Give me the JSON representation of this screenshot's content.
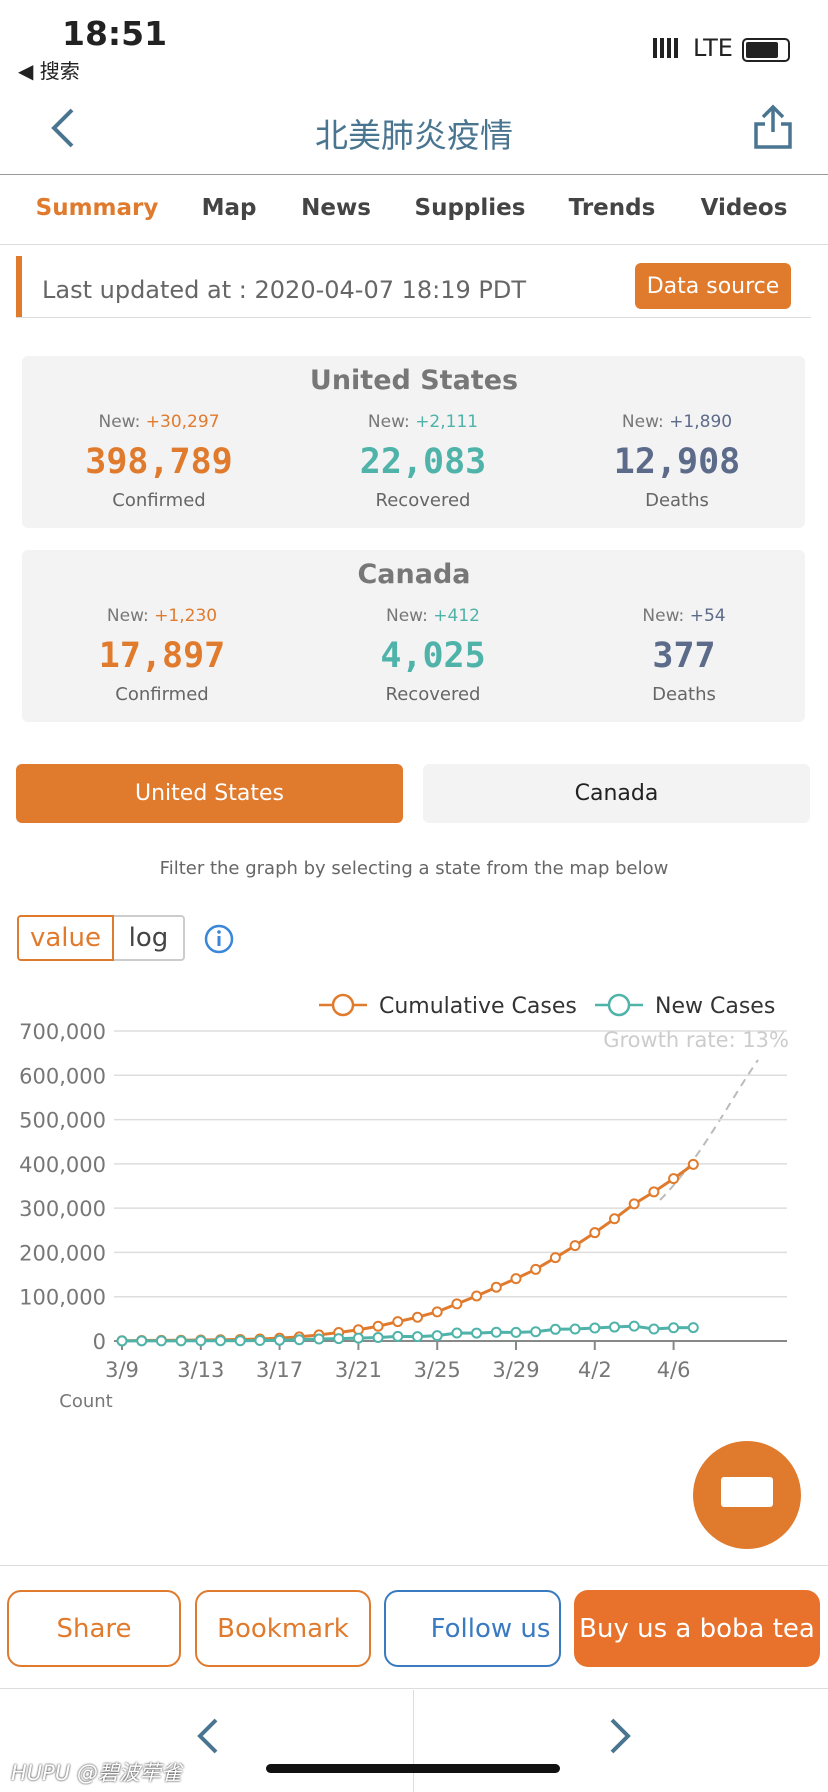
{
  "status": {
    "time": "18:51",
    "back": "◀ 搜索",
    "network": "LTE"
  },
  "nav": {
    "title": "北美肺炎疫情"
  },
  "tabs": [
    "Summary",
    "Map",
    "News",
    "Supplies",
    "Trends",
    "Videos"
  ],
  "updated": {
    "text": "Last updated at : 2020-04-07 18:19 PDT",
    "button": "Data source"
  },
  "cards": [
    {
      "title": "United States",
      "stats": [
        {
          "new_label": "New:",
          "new": "+30,297",
          "value": "398,789",
          "label": "Confirmed"
        },
        {
          "new_label": "New:",
          "new": "+2,111",
          "value": "22,083",
          "label": "Recovered"
        },
        {
          "new_label": "New:",
          "new": "+1,890",
          "value": "12,908",
          "label": "Deaths"
        }
      ]
    },
    {
      "title": "Canada",
      "stats": [
        {
          "new_label": "New:",
          "new": "+1,230",
          "value": "17,897",
          "label": "Confirmed"
        },
        {
          "new_label": "New:",
          "new": "+412",
          "value": "4,025",
          "label": "Recovered"
        },
        {
          "new_label": "New:",
          "new": "+54",
          "value": "377",
          "label": "Deaths"
        }
      ]
    }
  ],
  "toggle": [
    "United States",
    "Canada"
  ],
  "filter_text": "Filter the graph by selecting a state from the map below",
  "scale_buttons": [
    "value",
    "log"
  ],
  "chart_data": {
    "type": "line",
    "annotation": "Growth rate: 13%",
    "ylabel": "Count",
    "categories": [
      "3/9",
      null,
      null,
      null,
      "3/13",
      null,
      null,
      null,
      "3/17",
      null,
      null,
      null,
      "3/21",
      null,
      null,
      null,
      "3/25",
      null,
      null,
      null,
      "3/29",
      null,
      null,
      null,
      "4/2",
      null,
      null,
      null,
      "4/6",
      null
    ],
    "series": [
      {
        "name": "Cumulative Cases",
        "color": "#e07b2e",
        "values": [
          600,
          1000,
          1300,
          1700,
          2200,
          2900,
          3500,
          4600,
          6400,
          9200,
          13700,
          19100,
          25500,
          33300,
          43800,
          53700,
          65800,
          83800,
          101700,
          121500,
          140900,
          161800,
          188200,
          215300,
          244600,
          276100,
          309700,
          336800,
          366700,
          398789
        ]
      },
      {
        "name": "New Cases",
        "color": "#4fb3a9",
        "values": [
          150,
          400,
          300,
          400,
          500,
          700,
          600,
          1100,
          1800,
          2800,
          4500,
          5400,
          6400,
          7800,
          10500,
          9900,
          12100,
          18000,
          17900,
          19800,
          19400,
          20900,
          26400,
          27100,
          29300,
          31500,
          33600,
          27100,
          29900,
          30297
        ]
      }
    ],
    "ylim": [
      0,
      700000
    ],
    "yticks": [
      0,
      {
        "value": 100000,
        "label": "100,000"
      },
      {
        "value": 200000,
        "label": "200,000"
      },
      {
        "value": 300000,
        "label": "300,000"
      },
      {
        "value": 400000,
        "label": "400,000"
      },
      {
        "value": 500000,
        "label": "500,000"
      },
      {
        "value": 600000,
        "label": "600,000"
      },
      {
        "value": 700000,
        "label": "700,000"
      }
    ],
    "grid": true
  },
  "actions": [
    "Share",
    "Bookmark",
    "Follow us",
    "Buy us a boba tea"
  ],
  "watermark": "HUPU @碧波荦雀"
}
